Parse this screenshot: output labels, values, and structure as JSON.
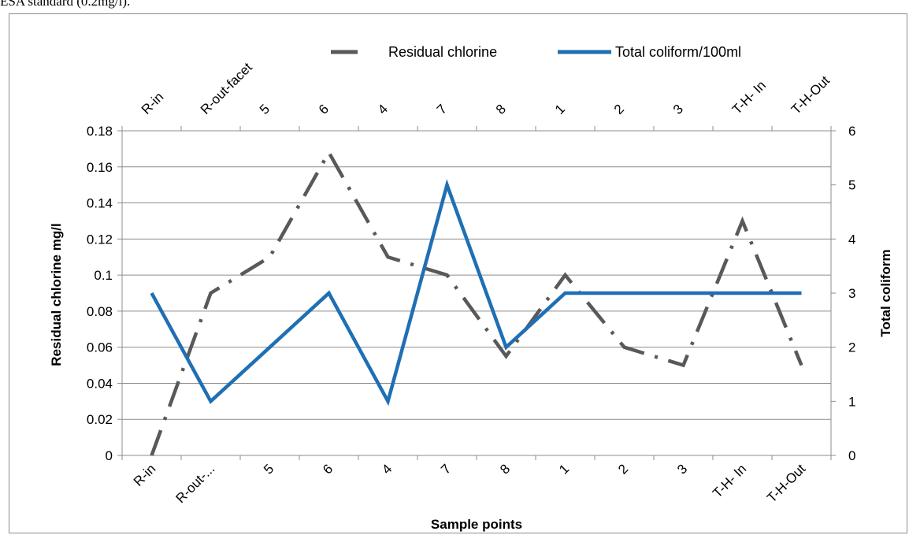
{
  "caption": "ESA standard (0.2mg/l).",
  "chart_data": {
    "type": "line",
    "categories": [
      "R-in",
      "R-out-facet",
      "5",
      "6",
      "4",
      "7",
      "8",
      "1",
      "2",
      "3",
      "T-H- In",
      "T-H-Out"
    ],
    "bottom_tick_labels": [
      "R-in",
      "R-out-...",
      "5",
      "6",
      "4",
      "7",
      "8",
      "1",
      "2",
      "3",
      "T-H- In",
      "T-H-Out"
    ],
    "series": [
      {
        "name": "Residual chlorine",
        "axis": "left",
        "color": "#595959",
        "dash": "dash-dot",
        "values": [
          0,
          0.09,
          0.11,
          0.168,
          0.11,
          0.1,
          0.055,
          0.1,
          0.06,
          0.05,
          0.13,
          0.05
        ]
      },
      {
        "name": "Total coliform/100ml",
        "axis": "right",
        "color": "#1f6fb4",
        "dash": "solid",
        "values": [
          3,
          1,
          2,
          3,
          1,
          5,
          2,
          3,
          3,
          3,
          3,
          3
        ]
      }
    ],
    "xlabel": "Sample points",
    "ylabel": "Residual chlorine mg/l",
    "y2label": "Total coliform",
    "ylim": [
      0,
      0.18
    ],
    "y2lim": [
      0,
      6
    ],
    "yticks": [
      "0",
      "0.02",
      "0.04",
      "0.06",
      "0.08",
      "0.1",
      "0.12",
      "0.14",
      "0.16",
      "0.18"
    ],
    "y2ticks": [
      "0",
      "1",
      "2",
      "3",
      "4",
      "5",
      "6"
    ],
    "grid": true,
    "legend_position": "top"
  }
}
